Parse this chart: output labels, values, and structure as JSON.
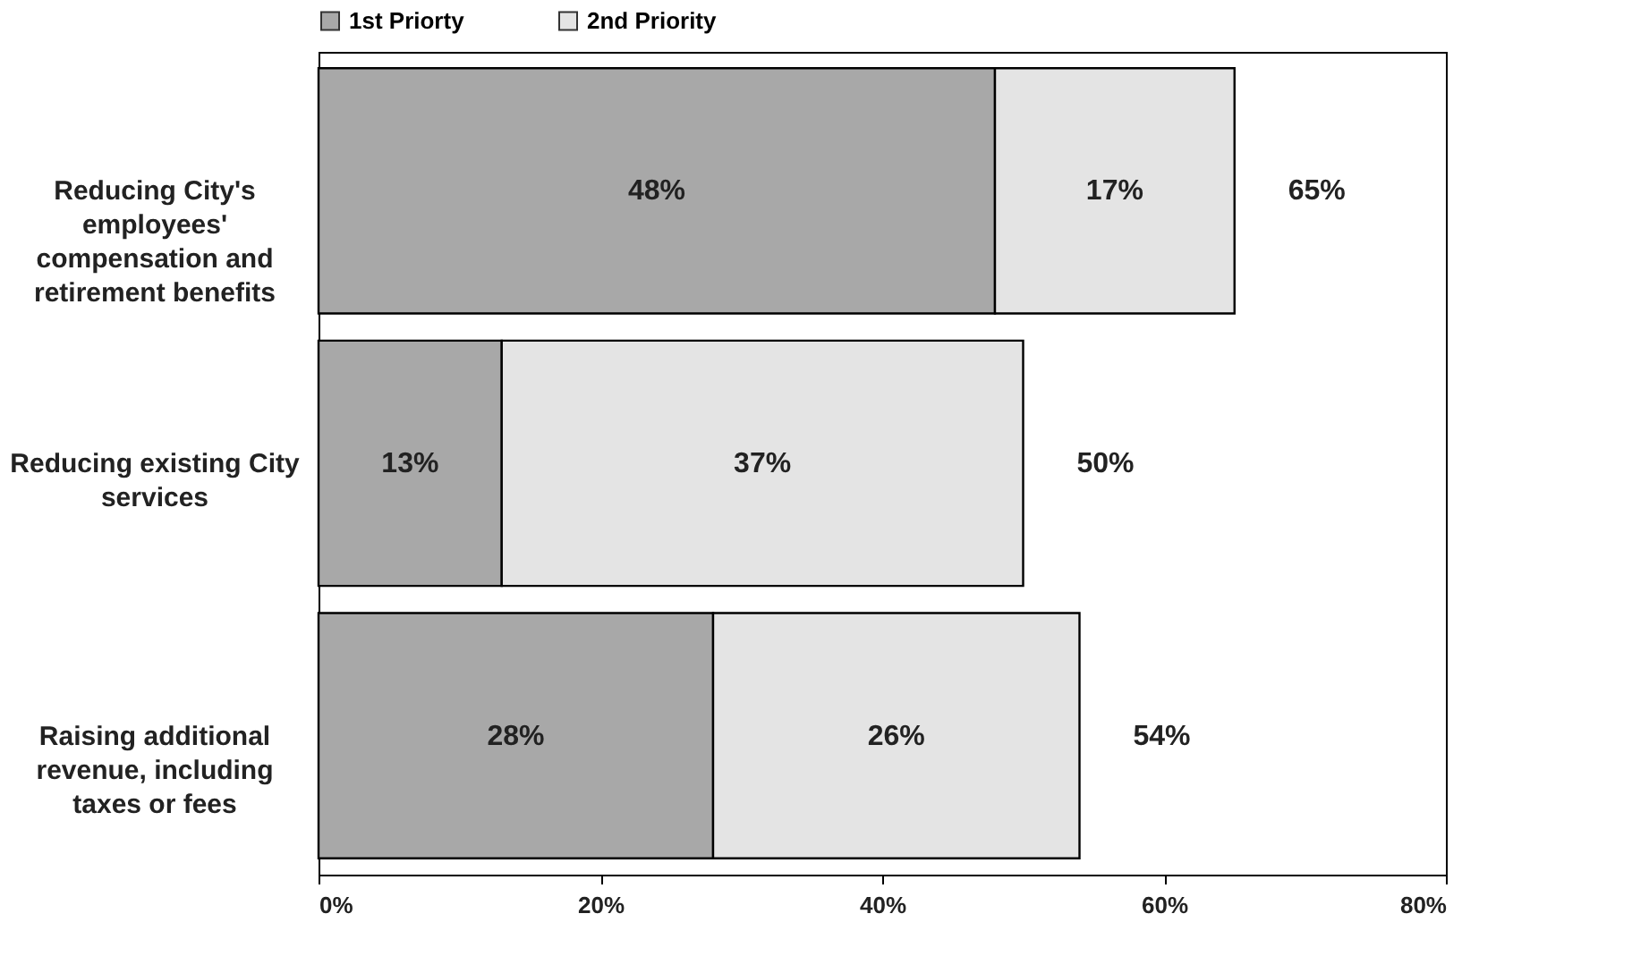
{
  "chart_data": {
    "type": "bar",
    "orientation": "horizontal",
    "stacked": true,
    "categories": [
      "Reducing City's employees' compensation and retirement benefits",
      "Reducing existing City services",
      "Raising additional revenue, including taxes or fees"
    ],
    "series": [
      {
        "name": "1st Priorty",
        "color": "#a8a8a8",
        "values": [
          48,
          13,
          28
        ],
        "value_labels": [
          "48%",
          "13%",
          "28%"
        ]
      },
      {
        "name": "2nd Priority",
        "color": "#e4e4e4",
        "values": [
          17,
          37,
          26
        ],
        "value_labels": [
          "17%",
          "37%",
          "26%"
        ]
      }
    ],
    "totals": [
      "65%",
      "50%",
      "54%"
    ],
    "xlim": [
      0,
      80
    ],
    "xticks": [
      {
        "value": 0,
        "label": "0%"
      },
      {
        "value": 20,
        "label": "20%"
      },
      {
        "value": 40,
        "label": "40%"
      },
      {
        "value": 60,
        "label": "60%"
      },
      {
        "value": 80,
        "label": "80%"
      }
    ],
    "grid": false,
    "legend": "top"
  }
}
